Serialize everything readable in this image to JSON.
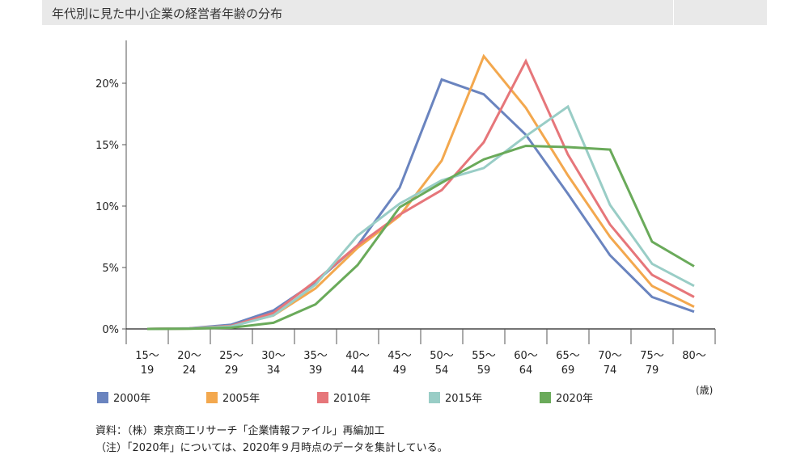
{
  "title": "年代別に見た中小企業の経営者年齢の分布",
  "unit": "(歳)",
  "notes": [
    "資料：（株）東京商工リサーチ「企業情報ファイル」再編加工",
    "（注）「2020年」については、2020年９月時点のデータを集計している。"
  ],
  "chart_data": {
    "type": "line",
    "categories": [
      [
        "15～",
        "19"
      ],
      [
        "20～",
        "24"
      ],
      [
        "25～",
        "29"
      ],
      [
        "30～",
        "34"
      ],
      [
        "35～",
        "39"
      ],
      [
        "40～",
        "44"
      ],
      [
        "45～",
        "49"
      ],
      [
        "50～",
        "54"
      ],
      [
        "55～",
        "59"
      ],
      [
        "60～",
        "64"
      ],
      [
        "65～",
        "69"
      ],
      [
        "70～",
        "74"
      ],
      [
        "75～",
        "79"
      ],
      [
        "80～",
        ""
      ]
    ],
    "ylim": [
      0,
      23
    ],
    "yticks": [
      0,
      5,
      10,
      15,
      20
    ],
    "ytick_labels": [
      "0%",
      "5%",
      "10%",
      "15%",
      "20%"
    ],
    "legend_position": "bottom",
    "series": [
      {
        "name": "2000年",
        "color": "#6a84bf",
        "values": [
          0.0,
          0.05,
          0.35,
          1.5,
          3.8,
          6.8,
          11.5,
          20.3,
          19.1,
          15.8,
          11.0,
          6.0,
          2.6,
          1.4
        ]
      },
      {
        "name": "2005年",
        "color": "#f3a84e",
        "values": [
          0.0,
          0.03,
          0.25,
          1.1,
          3.3,
          6.6,
          9.2,
          13.7,
          22.2,
          18.0,
          12.5,
          7.5,
          3.5,
          1.8
        ]
      },
      {
        "name": "2010年",
        "color": "#e6767a",
        "values": [
          0.0,
          0.03,
          0.25,
          1.3,
          3.9,
          6.8,
          9.3,
          11.3,
          15.2,
          21.8,
          14.2,
          8.5,
          4.4,
          2.6
        ]
      },
      {
        "name": "2015年",
        "color": "#99cdc6",
        "values": [
          0.0,
          0.03,
          0.2,
          1.1,
          3.6,
          7.6,
          10.2,
          12.1,
          13.1,
          15.7,
          18.1,
          10.1,
          5.3,
          3.5
        ]
      },
      {
        "name": "2020年",
        "color": "#6aaa5a",
        "values": [
          0.0,
          0.02,
          0.1,
          0.5,
          2.0,
          5.2,
          9.9,
          11.9,
          13.8,
          14.9,
          14.8,
          14.6,
          7.1,
          5.1
        ]
      }
    ]
  }
}
